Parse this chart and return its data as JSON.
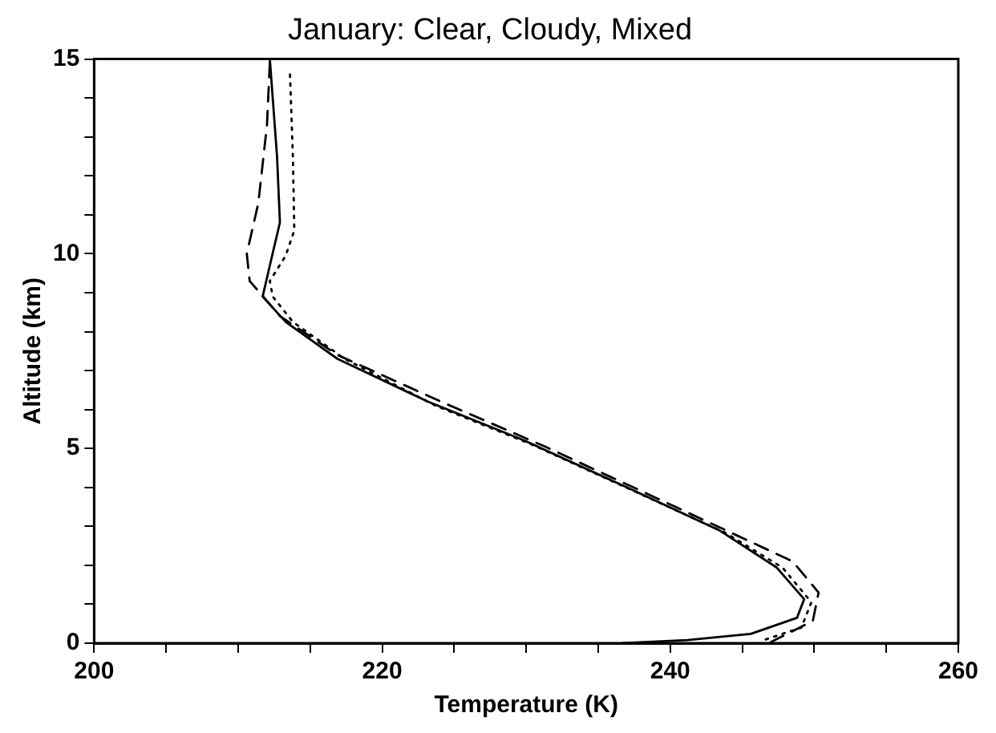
{
  "chart_data": {
    "type": "line",
    "title": "January: Clear, Cloudy, Mixed",
    "xlabel": "Temperature (K)",
    "ylabel": "Altitude (km)",
    "xlim": [
      200,
      260
    ],
    "ylim": [
      0,
      15
    ],
    "xticks": [
      200,
      {
        "value": 205,
        "label": null
      },
      {
        "value": 210,
        "label": null
      },
      {
        "value": 215,
        "label": null
      },
      220,
      {
        "value": 225,
        "label": null
      },
      {
        "value": 230,
        "label": null
      },
      {
        "value": 235,
        "label": null
      },
      240,
      {
        "value": 245,
        "label": null
      },
      {
        "value": 250,
        "label": null
      },
      {
        "value": 255,
        "label": null
      },
      260
    ],
    "yticks": [
      0,
      {
        "value": 1,
        "label": null
      },
      {
        "value": 2,
        "label": null
      },
      {
        "value": 3,
        "label": null
      },
      {
        "value": 4,
        "label": null
      },
      5,
      {
        "value": 6,
        "label": null
      },
      {
        "value": 7,
        "label": null
      },
      {
        "value": 8,
        "label": null
      },
      {
        "value": 9,
        "label": null
      },
      10,
      {
        "value": 11,
        "label": null
      },
      {
        "value": 12,
        "label": null
      },
      {
        "value": 13,
        "label": null
      },
      {
        "value": 14,
        "label": null
      },
      15
    ],
    "grid": false,
    "legend": false,
    "marker": "none",
    "series": [
      {
        "color": "#000000",
        "line_style": "solid",
        "x": [
          212.2,
          212.7,
          212.9,
          212.2,
          211.7,
          213.3,
          216.9,
          223.2,
          229.9,
          236.7,
          243.4,
          247.4,
          249.3,
          248.8,
          245.6,
          241.2,
          236.7
        ],
        "values": [
          15,
          12.5,
          10.8,
          9.7,
          8.9,
          8.25,
          7.3,
          6.2,
          5.2,
          4.05,
          2.9,
          1.94,
          1.13,
          0.65,
          0.24,
          0.08,
          0
        ]
      },
      {
        "color": "#000000",
        "line_style": "dashed",
        "x": [
          212.2,
          212.0,
          211.4,
          210.6,
          210.8,
          212.9,
          216.9,
          224.1,
          231.3,
          238.9,
          245.6,
          248.5,
          250.3,
          249.9,
          247.0
        ],
        "values": [
          14.9,
          13.3,
          11.3,
          10.0,
          9.3,
          8.4,
          7.4,
          6.2,
          5.05,
          3.75,
          2.6,
          2.1,
          1.3,
          0.57,
          0.03
        ]
      },
      {
        "color": "#000000",
        "line_style": "dotted",
        "x": [
          213.6,
          213.8,
          213.9,
          213.3,
          212.2,
          212.4,
          213.8,
          217.4,
          223.7,
          230.4,
          237.1,
          243.8,
          247.8,
          249.8,
          249.1,
          246.5
        ],
        "values": [
          14.6,
          12.5,
          10.6,
          9.95,
          9.3,
          8.9,
          8.25,
          7.3,
          6.1,
          5.1,
          3.97,
          2.84,
          1.94,
          1.05,
          0.4,
          0.08
        ]
      }
    ]
  }
}
